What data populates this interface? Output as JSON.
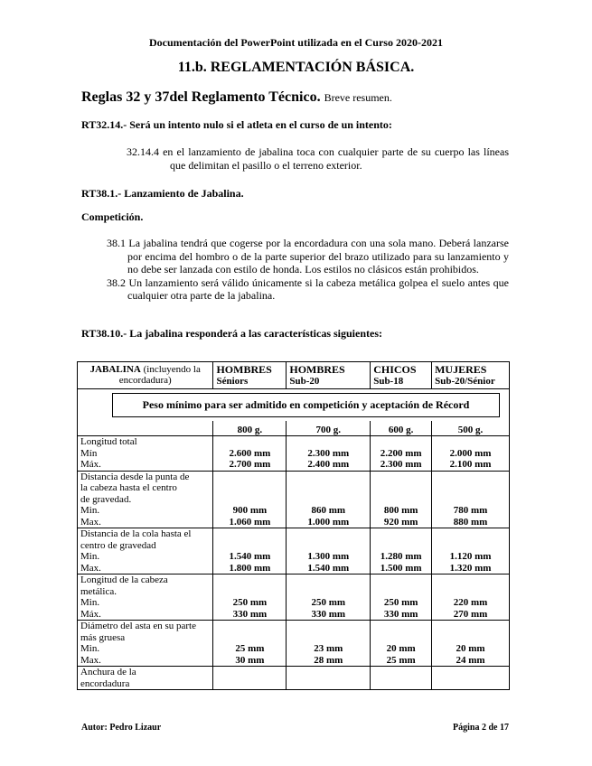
{
  "header": "Documentación del PowerPoint utilizada en el Curso 2020-2021",
  "title": "11.b. REGLAMENTACIÓN BÁSICA.",
  "subtitle": "Reglas 32 y 37del Reglamento Técnico.",
  "subtitle_note": "Breve resumen.",
  "rt3214": {
    "heading": "RT32.14.- Será un intento nulo si el atleta en el curso de un intento:",
    "item": "32.14.4 en el lanzamiento de jabalina  toca con cualquier parte de su cuerpo las líneas que delimitan el pasillo o el terreno exterior."
  },
  "rt381": {
    "heading": "RT38.1.- Lanzamiento de Jabalina.",
    "competicion": "Competición.",
    "item1": "38.1 La jabalina tendrá que cogerse por la encordadura con una sola mano. Deberá lanzarse por encima del hombro o de la parte superior del brazo utilizado para su lanzamiento y no debe ser lanzada con estilo de honda. Los estilos no clásicos están prohibidos.",
    "item2": "38.2 Un lanzamiento será válido únicamente si la cabeza metálica golpea el suelo antes que cualquier otra parte de la jabalina."
  },
  "rt3810": {
    "heading": "RT38.10.- La jabalina responderá a las características siguientes:"
  },
  "table": {
    "corner_bold": "JABALINA",
    "corner_rest": " (incluyendo la encordadura)",
    "columns": [
      {
        "a": "HOMBRES",
        "b": "Séniors"
      },
      {
        "a": "HOMBRES",
        "b": "Sub-20"
      },
      {
        "a": "CHICOS",
        "b": "Sub-18"
      },
      {
        "a": "MUJERES",
        "b": "Sub-20/Sénior"
      }
    ],
    "peso": "Peso mínimo para ser admitido en competición y aceptación de Récord",
    "weights": [
      "800 g.",
      "700 g.",
      "600 g.",
      "500 g."
    ],
    "rows": [
      {
        "label": [
          "Longitud total",
          "Mín",
          "Máx."
        ],
        "min": [
          "2.600 mm",
          "2.300 mm",
          "2.200 mm",
          "2.000 mm"
        ],
        "max": [
          "2.700 mm",
          "2.400 mm",
          "2.300 mm",
          "2.100 mm"
        ]
      },
      {
        "label": [
          "Distancia desde la punta  de",
          "la cabeza hasta el centro",
          "de gravedad.",
          "Min.",
          "Max."
        ],
        "min": [
          "900 mm",
          "860 mm",
          "800 mm",
          "780 mm"
        ],
        "max": [
          "1.060 mm",
          "1.000 mm",
          "920 mm",
          "880 mm"
        ]
      },
      {
        "label": [
          "Distancia de la cola hasta el",
          "centro de gravedad",
          "Min.",
          "Max."
        ],
        "min": [
          "1.540 mm",
          "1.300 mm",
          "1.280 mm",
          "1.120 mm"
        ],
        "max": [
          "1.800 mm",
          "1.540 mm",
          "1.500 mm",
          "1.320 mm"
        ]
      },
      {
        "label": [
          "Longitud de la cabeza",
          "metálica.",
          "Min.",
          "Máx."
        ],
        "min": [
          "250 mm",
          "250 mm",
          "250 mm",
          "220 mm"
        ],
        "max": [
          "330 mm",
          "330 mm",
          "330 mm",
          "270 mm"
        ]
      },
      {
        "label": [
          "Diámetro del asta en su parte",
          "más gruesa",
          "Min.",
          "Max."
        ],
        "min": [
          "25 mm",
          "23 mm",
          "20 mm",
          "20 mm"
        ],
        "max": [
          "30 mm",
          "28 mm",
          "25 mm",
          "24 mm"
        ]
      },
      {
        "label": [
          "Anchura de la",
          "encordadura"
        ],
        "min": [
          "",
          "",
          "",
          ""
        ],
        "max": [
          "",
          "",
          "",
          ""
        ]
      }
    ]
  },
  "footer": {
    "author": "Autor: Pedro Lizaur",
    "page": "Página 2 de 17"
  }
}
